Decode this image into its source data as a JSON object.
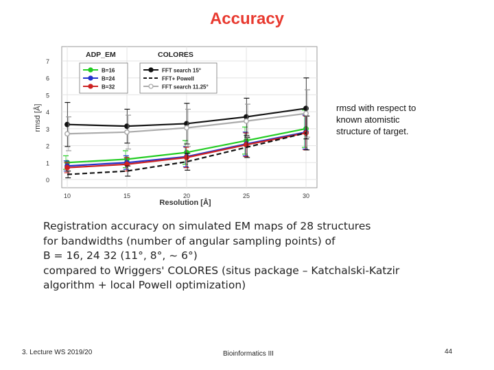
{
  "slide": {
    "title": "Accuracy",
    "side_note": [
      "rmsd with respect to",
      "known atomistic",
      "structure of target."
    ],
    "caption": [
      "Registration accuracy on simulated EM maps of 28 structures",
      "for bandwidths (number of angular sampling points) of",
      "B = 16, 24 32 (11°, 8°, ~ 6°)",
      "compared to Wriggers' COLORES (situs package – Katchalski-Katzir",
      "algorithm + local Powell optimization)"
    ],
    "footer_left": "3. Lecture WS 2019/20",
    "footer_center": "Bioinformatics III",
    "page_number": "44"
  },
  "chart_data": {
    "type": "line",
    "xlabel": "Resolution [Å]",
    "ylabel": "rmsd [Å]",
    "xlim": [
      10,
      30
    ],
    "ylim": [
      0,
      7
    ],
    "x_ticks": [
      "10",
      "15",
      "20",
      "25",
      "30"
    ],
    "y_ticks": [
      "0",
      "1",
      "2",
      "3",
      "4",
      "5",
      "6",
      "7"
    ],
    "x": [
      10,
      15,
      20,
      25,
      30
    ],
    "legend_groups": [
      {
        "title": "ADP_EM",
        "placement": "top-left"
      },
      {
        "title": "COLORES",
        "placement": "top-center"
      }
    ],
    "series": [
      {
        "name": "B=16",
        "group": "ADP_EM",
        "color": "#22cc22",
        "dash": "solid",
        "marker": "circle",
        "values": [
          1.0,
          1.2,
          1.6,
          2.3,
          3.0
        ],
        "err": [
          0.4,
          0.5,
          0.7,
          0.8,
          1.1
        ]
      },
      {
        "name": "B=24",
        "group": "ADP_EM",
        "color": "#2233cc",
        "dash": "solid",
        "marker": "circle",
        "values": [
          0.8,
          1.0,
          1.35,
          2.1,
          2.8
        ],
        "err": [
          0.3,
          0.4,
          0.6,
          0.7,
          1.0
        ]
      },
      {
        "name": "B=32",
        "group": "ADP_EM",
        "color": "#cc2222",
        "dash": "solid",
        "marker": "circle",
        "values": [
          0.7,
          0.9,
          1.3,
          2.05,
          2.75
        ],
        "err": [
          0.3,
          0.4,
          0.6,
          0.7,
          1.0
        ]
      },
      {
        "name": "FFT search 15°",
        "group": "COLORES",
        "color": "#111111",
        "dash": "solid",
        "marker": "circle",
        "values": [
          3.25,
          3.15,
          3.3,
          3.7,
          4.2
        ],
        "err": [
          1.3,
          1.0,
          1.2,
          1.1,
          1.8
        ]
      },
      {
        "name": "FFT+ Powell",
        "group": "COLORES",
        "color": "#111111",
        "dash": "dashed",
        "marker": "none",
        "values": [
          0.3,
          0.5,
          1.05,
          1.9,
          2.75
        ],
        "err": [
          0.2,
          0.3,
          0.5,
          0.6,
          1.0
        ]
      },
      {
        "name": "FFT search 11.25°",
        "group": "COLORES",
        "color": "#aaaaaa",
        "dash": "solid",
        "marker": "circle-open",
        "values": [
          2.7,
          2.8,
          3.05,
          3.45,
          3.9
        ],
        "err": [
          1.0,
          1.0,
          1.1,
          1.0,
          1.4
        ]
      }
    ]
  }
}
